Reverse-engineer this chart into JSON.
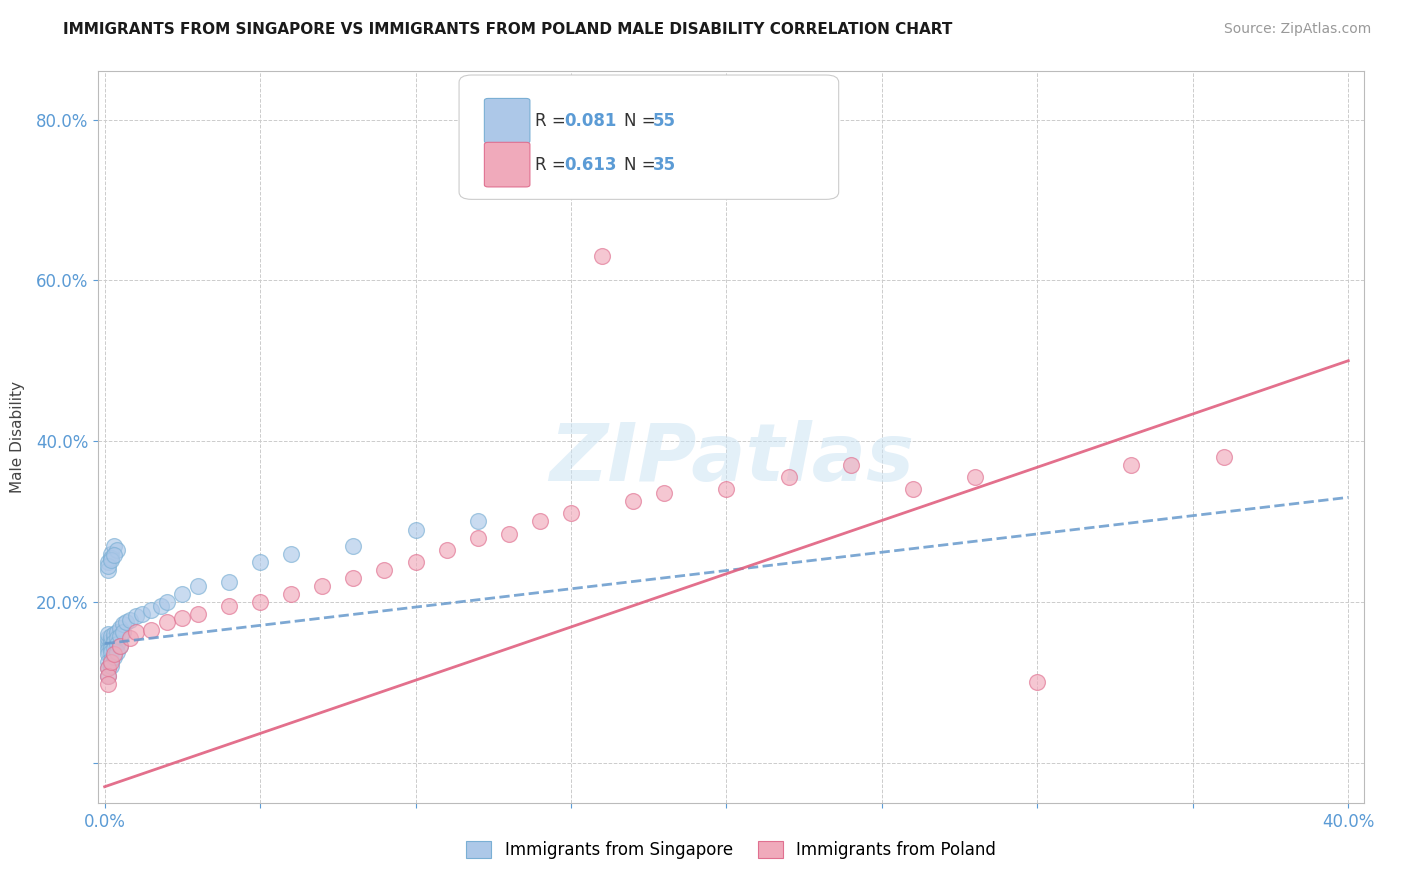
{
  "title": "IMMIGRANTS FROM SINGAPORE VS IMMIGRANTS FROM POLAND MALE DISABILITY CORRELATION CHART",
  "source": "Source: ZipAtlas.com",
  "ylabel": "Male Disability",
  "xlim": [
    -0.002,
    0.405
  ],
  "ylim": [
    -0.05,
    0.86
  ],
  "xticks": [
    0.0,
    0.05,
    0.1,
    0.15,
    0.2,
    0.25,
    0.3,
    0.35,
    0.4
  ],
  "yticks": [
    0.0,
    0.2,
    0.4,
    0.6,
    0.8
  ],
  "color_singapore": "#adc8e8",
  "color_singapore_edge": "#7aafd4",
  "color_poland": "#f0aabb",
  "color_poland_edge": "#e07090",
  "color_sg_line": "#6699cc",
  "color_pl_line": "#e06080",
  "singapore_x": [
    0.001,
    0.001,
    0.001,
    0.001,
    0.001,
    0.001,
    0.001,
    0.001,
    0.001,
    0.002,
    0.002,
    0.002,
    0.002,
    0.002,
    0.002,
    0.002,
    0.003,
    0.003,
    0.003,
    0.003,
    0.003,
    0.004,
    0.004,
    0.004,
    0.004,
    0.005,
    0.005,
    0.005,
    0.006,
    0.006,
    0.007,
    0.008,
    0.01,
    0.012,
    0.015,
    0.018,
    0.02,
    0.025,
    0.03,
    0.04,
    0.05,
    0.06,
    0.08,
    0.1,
    0.12,
    0.001,
    0.002,
    0.001,
    0.003,
    0.002,
    0.001,
    0.004,
    0.002,
    0.003
  ],
  "singapore_y": [
    0.145,
    0.15,
    0.155,
    0.16,
    0.14,
    0.135,
    0.125,
    0.118,
    0.108,
    0.148,
    0.152,
    0.158,
    0.143,
    0.138,
    0.128,
    0.12,
    0.155,
    0.16,
    0.15,
    0.142,
    0.132,
    0.162,
    0.155,
    0.148,
    0.138,
    0.168,
    0.158,
    0.145,
    0.172,
    0.162,
    0.175,
    0.178,
    0.182,
    0.185,
    0.19,
    0.195,
    0.2,
    0.21,
    0.22,
    0.225,
    0.25,
    0.26,
    0.27,
    0.29,
    0.3,
    0.25,
    0.26,
    0.24,
    0.27,
    0.255,
    0.245,
    0.265,
    0.252,
    0.258
  ],
  "poland_x": [
    0.001,
    0.001,
    0.001,
    0.002,
    0.003,
    0.005,
    0.008,
    0.01,
    0.015,
    0.02,
    0.025,
    0.03,
    0.04,
    0.05,
    0.06,
    0.07,
    0.08,
    0.09,
    0.1,
    0.11,
    0.12,
    0.13,
    0.14,
    0.15,
    0.16,
    0.17,
    0.18,
    0.2,
    0.22,
    0.24,
    0.26,
    0.28,
    0.3,
    0.33,
    0.36
  ],
  "poland_y": [
    0.118,
    0.108,
    0.098,
    0.125,
    0.135,
    0.145,
    0.155,
    0.162,
    0.165,
    0.175,
    0.18,
    0.185,
    0.195,
    0.2,
    0.21,
    0.22,
    0.23,
    0.24,
    0.25,
    0.265,
    0.28,
    0.285,
    0.3,
    0.31,
    0.63,
    0.325,
    0.335,
    0.34,
    0.355,
    0.37,
    0.34,
    0.355,
    0.1,
    0.37,
    0.38
  ],
  "sg_line_x0": 0.0,
  "sg_line_x1": 0.4,
  "sg_line_y0": 0.148,
  "sg_line_y1": 0.33,
  "pl_line_x0": 0.0,
  "pl_line_x1": 0.4,
  "pl_line_y0": -0.03,
  "pl_line_y1": 0.5,
  "legend_label1": "Immigrants from Singapore",
  "legend_label2": "Immigrants from Poland"
}
